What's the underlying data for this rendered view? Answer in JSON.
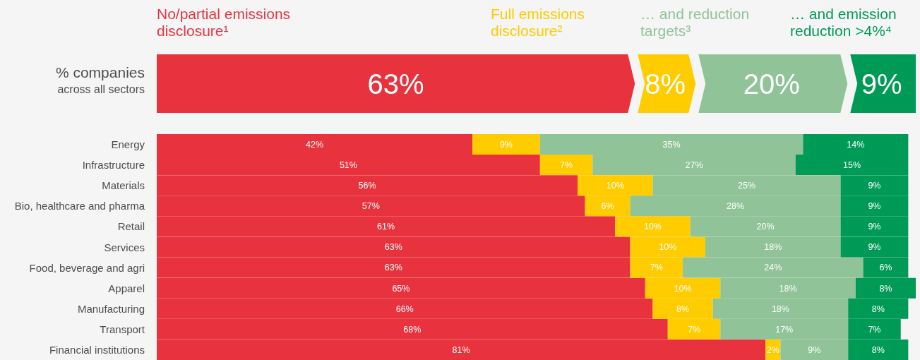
{
  "chart_data": [
    {
      "type": "bar",
      "orientation": "horizontal",
      "stacked": true,
      "ylabel": "% companies",
      "categories": [
        "across all sectors"
      ],
      "legend": "top",
      "series": [
        {
          "name": "No/partial emissions disclosure¹",
          "color": "#e8333f",
          "values": [
            63
          ],
          "value_labels": [
            "63%"
          ]
        },
        {
          "name": "Full emissions disclosure²",
          "color": "#ffcc00",
          "values": [
            8
          ],
          "value_labels": [
            "8%"
          ]
        },
        {
          "name": "… and reduction targets³",
          "color": "#90c398",
          "values": [
            20
          ],
          "value_labels": [
            "20%"
          ]
        },
        {
          "name": "… and emission reduction >4%⁴",
          "color": "#009a57",
          "values": [
            9
          ],
          "value_labels": [
            "9%"
          ]
        }
      ]
    },
    {
      "type": "bar",
      "orientation": "horizontal",
      "stacked": true,
      "categories": [
        "Energy",
        "Infrastructure",
        "Materials",
        "Bio, healthcare and pharma",
        "Retail",
        "Services",
        "Food, beverage and agri",
        "Apparel",
        "Manufacturing",
        "Transport",
        "Financial institutions"
      ],
      "series": [
        {
          "color": "#e8333f",
          "values": [
            42,
            51,
            56,
            57,
            61,
            63,
            63,
            65,
            66,
            68,
            81
          ],
          "value_labels": [
            "42%",
            "51%",
            "56%",
            "57%",
            "61%",
            "63%",
            "63%",
            "65%",
            "66%",
            "68%",
            "81%"
          ]
        },
        {
          "color": "#ffcc00",
          "values": [
            9,
            7,
            10,
            6,
            10,
            10,
            7,
            10,
            8,
            7,
            2
          ],
          "value_labels": [
            "9%",
            "7%",
            "10%",
            "6%",
            "10%",
            "10%",
            "7%",
            "10%",
            "8%",
            "7%",
            "2%"
          ]
        },
        {
          "color": "#90c398",
          "values": [
            35,
            27,
            25,
            28,
            20,
            18,
            24,
            18,
            18,
            17,
            9
          ],
          "value_labels": [
            "35%",
            "27%",
            "25%",
            "28%",
            "20%",
            "18%",
            "24%",
            "18%",
            "18%",
            "17%",
            "9%"
          ]
        },
        {
          "color": "#009a57",
          "values": [
            14,
            15,
            9,
            9,
            9,
            9,
            6,
            8,
            8,
            7,
            8
          ],
          "value_labels": [
            "14%",
            "15%",
            "9%",
            "9%",
            "9%",
            "9%",
            "6%",
            "8%",
            "8%",
            "7%",
            "8%"
          ]
        }
      ]
    }
  ]
}
